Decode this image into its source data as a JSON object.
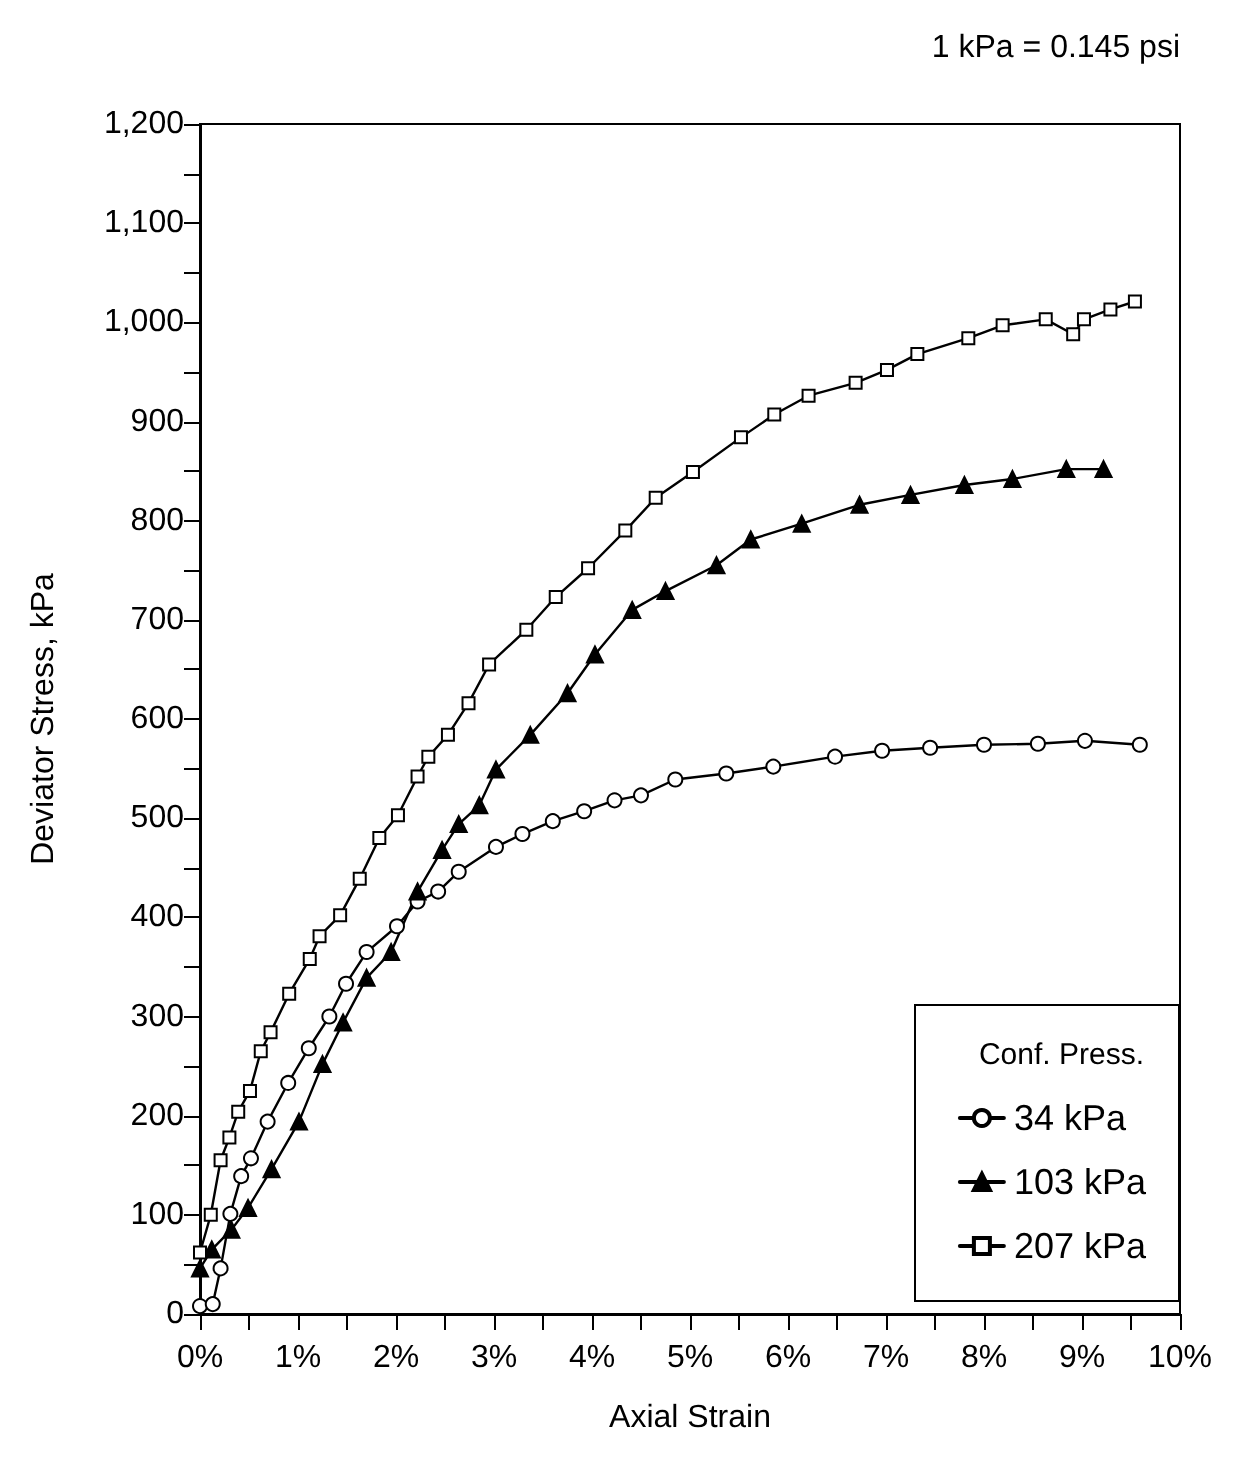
{
  "chart_data": {
    "type": "line",
    "xlabel": "Axial Strain",
    "ylabel": "Deviator Stress, kPa",
    "legend_title": "Conf. Press.",
    "legend": "bottom right",
    "grid": false,
    "line_style": "solid",
    "annotations": [
      "1 kPa = 0.145 psi"
    ],
    "xlim": [
      0,
      10
    ],
    "ylim": [
      0,
      1200
    ],
    "xticks": [
      {
        "value": 0,
        "label": "0%"
      },
      {
        "value": 0.5,
        "label": null
      },
      {
        "value": 1,
        "label": "1%"
      },
      {
        "value": 1.5,
        "label": null
      },
      {
        "value": 2,
        "label": "2%"
      },
      {
        "value": 2.5,
        "label": null
      },
      {
        "value": 3,
        "label": "3%"
      },
      {
        "value": 3.5,
        "label": null
      },
      {
        "value": 4,
        "label": "4%"
      },
      {
        "value": 4.5,
        "label": null
      },
      {
        "value": 5,
        "label": "5%"
      },
      {
        "value": 5.5,
        "label": null
      },
      {
        "value": 6,
        "label": "6%"
      },
      {
        "value": 6.5,
        "label": null
      },
      {
        "value": 7,
        "label": "7%"
      },
      {
        "value": 7.5,
        "label": null
      },
      {
        "value": 8,
        "label": "8%"
      },
      {
        "value": 8.5,
        "label": null
      },
      {
        "value": 9,
        "label": "9%"
      },
      {
        "value": 9.5,
        "label": null
      },
      {
        "value": 10,
        "label": "10%"
      }
    ],
    "yticks": [
      0,
      {
        "value": 50,
        "label": null
      },
      100,
      {
        "value": 150,
        "label": null
      },
      200,
      {
        "value": 250,
        "label": null
      },
      300,
      {
        "value": 350,
        "label": null
      },
      400,
      {
        "value": 450,
        "label": null
      },
      500,
      {
        "value": 550,
        "label": null
      },
      600,
      {
        "value": 650,
        "label": null
      },
      700,
      {
        "value": 750,
        "label": null
      },
      800,
      {
        "value": 850,
        "label": null
      },
      900,
      {
        "value": 950,
        "label": null
      },
      {
        "value": 1000,
        "label": "1,000"
      },
      {
        "value": 1050,
        "label": null
      },
      {
        "value": 1100,
        "label": "1,100"
      },
      {
        "value": 1150,
        "label": null
      },
      {
        "value": 1200,
        "label": "1,200"
      }
    ],
    "series": [
      {
        "name": "34 kPa",
        "color": "#000000",
        "marker": "circle",
        "x": [
          0,
          0.13,
          0.21,
          0.31,
          0.42,
          0.52,
          0.69,
          0.9,
          1.11,
          1.32,
          1.49,
          1.7,
          2.01,
          2.22,
          2.43,
          2.64,
          3.02,
          3.29,
          3.6,
          3.92,
          4.23,
          4.5,
          4.85,
          5.37,
          5.85,
          6.48,
          6.96,
          7.45,
          8.0,
          8.55,
          9.03,
          9.59
        ],
        "values": [
          8,
          10,
          46,
          101,
          139,
          157,
          194,
          233,
          268,
          300,
          333,
          365,
          391,
          416,
          426,
          446,
          471,
          484,
          497,
          507,
          518,
          523,
          539,
          545,
          552,
          562,
          568,
          571,
          574,
          575,
          578,
          574
        ]
      },
      {
        "name": "103 kPa",
        "color": "#000000",
        "marker": "triangle",
        "x": [
          0,
          0.12,
          0.32,
          0.49,
          0.73,
          1.01,
          1.25,
          1.46,
          1.7,
          1.95,
          2.22,
          2.47,
          2.64,
          2.85,
          3.02,
          3.37,
          3.75,
          4.03,
          4.41,
          4.75,
          5.27,
          5.62,
          6.14,
          6.73,
          7.25,
          7.8,
          8.29,
          8.84,
          9.22
        ],
        "values": [
          46,
          65,
          85,
          107,
          146,
          194,
          252,
          294,
          339,
          365,
          426,
          468,
          494,
          513,
          549,
          584,
          626,
          665,
          710,
          729,
          755,
          781,
          797,
          816,
          826,
          836,
          842,
          852,
          852
        ]
      },
      {
        "name": "207 kPa",
        "color": "#000000",
        "marker": "square",
        "x": [
          0,
          0.11,
          0.21,
          0.3,
          0.39,
          0.51,
          0.62,
          0.72,
          0.91,
          1.12,
          1.22,
          1.43,
          1.63,
          1.83,
          2.02,
          2.22,
          2.33,
          2.53,
          2.74,
          2.95,
          3.33,
          3.63,
          3.96,
          4.34,
          4.65,
          5.03,
          5.52,
          5.86,
          6.21,
          6.69,
          7.01,
          7.32,
          7.84,
          8.19,
          8.63,
          8.91,
          9.02,
          9.29,
          9.54
        ],
        "values": [
          62,
          100,
          155,
          178,
          204,
          225,
          265,
          284,
          323,
          358,
          381,
          402,
          439,
          480,
          503,
          542,
          562,
          584,
          616,
          655,
          690,
          723,
          752,
          790,
          823,
          849,
          884,
          907,
          926,
          939,
          952,
          968,
          984,
          997,
          1003,
          988,
          1003,
          1013,
          1021
        ]
      }
    ]
  }
}
